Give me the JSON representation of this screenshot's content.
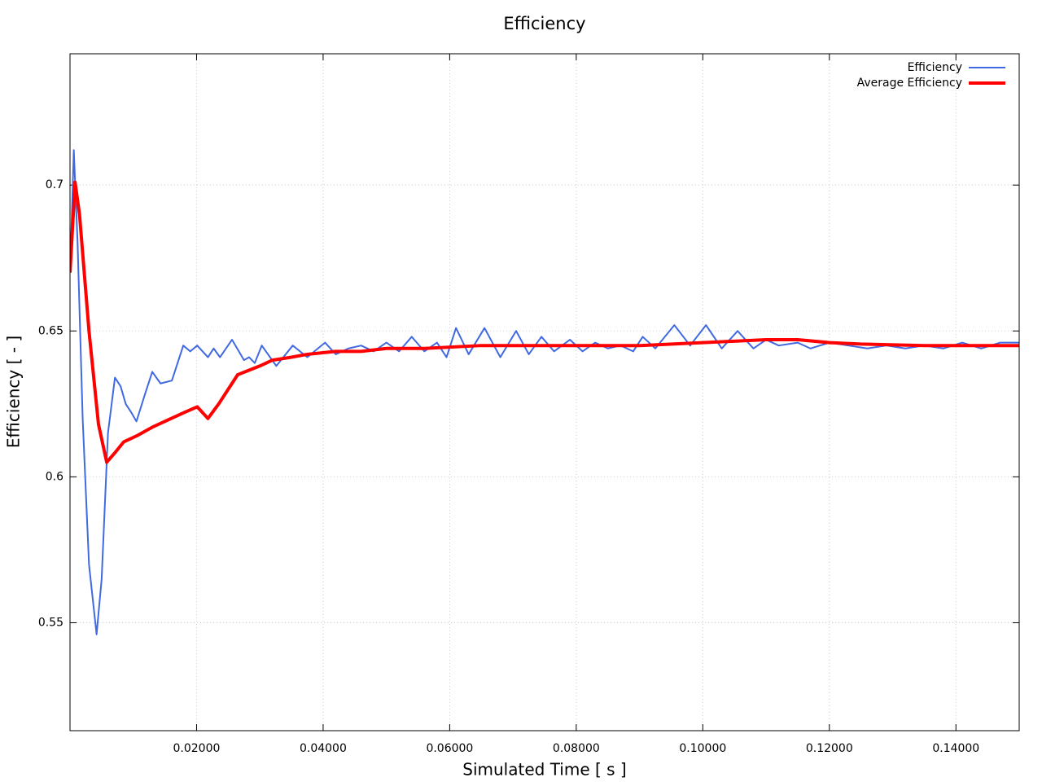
{
  "chart_data": {
    "type": "line",
    "title": "Efficiency",
    "x_label": "Simulated Time [ s ]",
    "y_label": "Efficiency [ - ]",
    "xlim": [
      0,
      0.15
    ],
    "ylim": [
      0.513,
      0.745
    ],
    "xticks": [
      {
        "value": 0.02,
        "label": "0.02000"
      },
      {
        "value": 0.04,
        "label": "0.04000"
      },
      {
        "value": 0.06,
        "label": "0.06000"
      },
      {
        "value": 0.08,
        "label": "0.08000"
      },
      {
        "value": 0.1,
        "label": "0.10000"
      },
      {
        "value": 0.12,
        "label": "0.12000"
      },
      {
        "value": 0.14,
        "label": "0.14000"
      }
    ],
    "yticks": [
      0.55,
      0.6,
      0.65,
      0.7
    ],
    "grid": true,
    "legend": "top-right",
    "series": [
      {
        "name": "Efficiency",
        "color": "#4169e1",
        "width": 2,
        "x": [
          0,
          0.0003,
          0.0006,
          0.0012,
          0.002,
          0.003,
          0.0042,
          0.005,
          0.006,
          0.0071,
          0.008,
          0.0088,
          0.0097,
          0.0105,
          0.0118,
          0.013,
          0.0143,
          0.0161,
          0.0179,
          0.019,
          0.0201,
          0.0218,
          0.0227,
          0.0237,
          0.0256,
          0.0275,
          0.0283,
          0.0292,
          0.0303,
          0.0326,
          0.0352,
          0.0375,
          0.0403,
          0.042,
          0.044,
          0.046,
          0.048,
          0.05,
          0.052,
          0.054,
          0.056,
          0.058,
          0.0595,
          0.061,
          0.063,
          0.0655,
          0.068,
          0.0705,
          0.0725,
          0.0745,
          0.0765,
          0.079,
          0.081,
          0.083,
          0.085,
          0.087,
          0.089,
          0.0905,
          0.0925,
          0.0955,
          0.098,
          0.1005,
          0.103,
          0.1055,
          0.108,
          0.11,
          0.112,
          0.115,
          0.117,
          0.12,
          0.123,
          0.126,
          0.129,
          0.132,
          0.135,
          0.138,
          0.141,
          0.144,
          0.147,
          0.15
        ],
        "values": [
          0.67,
          0.69,
          0.712,
          0.68,
          0.62,
          0.57,
          0.546,
          0.565,
          0.615,
          0.634,
          0.631,
          0.625,
          0.622,
          0.619,
          0.628,
          0.636,
          0.632,
          0.633,
          0.645,
          0.643,
          0.645,
          0.641,
          0.644,
          0.641,
          0.647,
          0.64,
          0.641,
          0.639,
          0.645,
          0.638,
          0.645,
          0.641,
          0.646,
          0.642,
          0.644,
          0.645,
          0.643,
          0.646,
          0.643,
          0.648,
          0.643,
          0.646,
          0.641,
          0.651,
          0.642,
          0.651,
          0.641,
          0.65,
          0.642,
          0.648,
          0.643,
          0.647,
          0.643,
          0.646,
          0.644,
          0.645,
          0.643,
          0.648,
          0.644,
          0.652,
          0.645,
          0.652,
          0.644,
          0.65,
          0.644,
          0.647,
          0.645,
          0.646,
          0.644,
          0.646,
          0.645,
          0.644,
          0.645,
          0.644,
          0.645,
          0.644,
          0.646,
          0.644,
          0.646,
          0.646
        ]
      },
      {
        "name": "Average Efficiency",
        "color": "#ff0000",
        "width": 4,
        "x": [
          0,
          0.0008,
          0.0015,
          0.003,
          0.0045,
          0.0058,
          0.007,
          0.0085,
          0.0105,
          0.013,
          0.016,
          0.018,
          0.0201,
          0.0218,
          0.0235,
          0.0265,
          0.03,
          0.032,
          0.035,
          0.0375,
          0.042,
          0.046,
          0.05,
          0.056,
          0.065,
          0.08,
          0.09,
          0.1,
          0.105,
          0.11,
          0.115,
          0.12,
          0.125,
          0.135,
          0.15
        ],
        "values": [
          0.67,
          0.701,
          0.69,
          0.65,
          0.618,
          0.605,
          0.608,
          0.612,
          0.614,
          0.617,
          0.62,
          0.622,
          0.624,
          0.62,
          0.625,
          0.635,
          0.638,
          0.64,
          0.641,
          0.642,
          0.643,
          0.643,
          0.644,
          0.644,
          0.645,
          0.645,
          0.645,
          0.646,
          0.6465,
          0.647,
          0.647,
          0.646,
          0.6455,
          0.645,
          0.645
        ]
      }
    ]
  }
}
